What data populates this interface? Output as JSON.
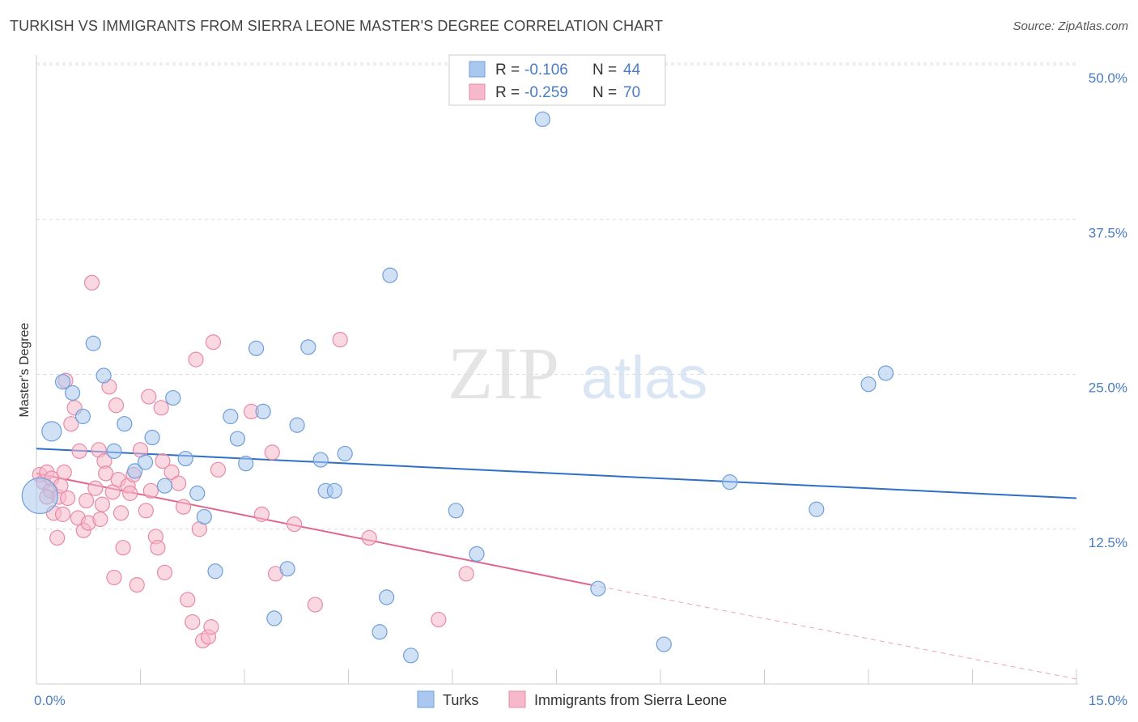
{
  "title": "TURKISH VS IMMIGRANTS FROM SIERRA LEONE MASTER'S DEGREE CORRELATION CHART",
  "source": "Source: ZipAtlas.com",
  "watermark": {
    "zip": "ZIP",
    "atlas": "atlas"
  },
  "colors": {
    "turks_fill": "#aac8ef",
    "turks_stroke": "#6f9fd8",
    "turks_line": "#2f6fc7",
    "sl_fill": "#f6b8cb",
    "sl_stroke": "#e78aa6",
    "sl_line": "#e06690",
    "tick_text": "#4a7cc4",
    "grid": "#dcdcdc"
  },
  "legend": {
    "turks": {
      "r_label": "R = ",
      "r_value": "-0.106",
      "n_label": "N = ",
      "n_value": "44"
    },
    "sl": {
      "r_label": "R = ",
      "r_value": "-0.259",
      "n_label": "N = ",
      "n_value": "70"
    }
  },
  "chart_data": {
    "type": "scatter",
    "title": "TURKISH VS IMMIGRANTS FROM SIERRA LEONE MASTER'S DEGREE CORRELATION CHART",
    "xlabel": "",
    "ylabel": "Master's Degree",
    "xlim": [
      0,
      15
    ],
    "ylim": [
      0,
      51.5
    ],
    "x_tick_labels": [
      {
        "value": 0,
        "label": "0.0%"
      },
      {
        "value": 15,
        "label": "15.0%"
      }
    ],
    "y_tick_labels": [
      {
        "value": 12.5,
        "label": "12.5%"
      },
      {
        "value": 25,
        "label": "25.0%"
      },
      {
        "value": 37.5,
        "label": "37.5%"
      },
      {
        "value": 50,
        "label": "50.0%"
      }
    ],
    "grid": true,
    "legend_position": "top-center",
    "series": [
      {
        "name": "Turks",
        "color": "#aac8ef",
        "points": [
          [
            0.05,
            15.2,
            22
          ],
          [
            0.22,
            20.4,
            12
          ],
          [
            0.38,
            24.4,
            9
          ],
          [
            0.52,
            23.5,
            9
          ],
          [
            0.67,
            21.6,
            9
          ],
          [
            0.82,
            27.5,
            9
          ],
          [
            0.97,
            24.9,
            9
          ],
          [
            1.12,
            18.8,
            9
          ],
          [
            1.27,
            21.0,
            9
          ],
          [
            1.42,
            17.2,
            9
          ],
          [
            1.57,
            17.9,
            9
          ],
          [
            1.67,
            19.9,
            9
          ],
          [
            1.85,
            16.0,
            9
          ],
          [
            1.97,
            23.1,
            9
          ],
          [
            2.15,
            18.2,
            9
          ],
          [
            2.32,
            15.4,
            9
          ],
          [
            2.42,
            13.5,
            9
          ],
          [
            2.58,
            9.1,
            9
          ],
          [
            2.8,
            21.6,
            9
          ],
          [
            2.9,
            19.8,
            9
          ],
          [
            3.02,
            17.8,
            9
          ],
          [
            3.17,
            27.1,
            9
          ],
          [
            3.27,
            22.0,
            9
          ],
          [
            3.43,
            5.3,
            9
          ],
          [
            3.62,
            9.3,
            9
          ],
          [
            3.76,
            20.9,
            9
          ],
          [
            3.92,
            27.2,
            9
          ],
          [
            4.1,
            18.1,
            9
          ],
          [
            4.17,
            15.6,
            9
          ],
          [
            4.3,
            15.6,
            9
          ],
          [
            4.45,
            18.6,
            9
          ],
          [
            5.1,
            33.0,
            9
          ],
          [
            5.05,
            7.0,
            9
          ],
          [
            4.95,
            4.2,
            9
          ],
          [
            5.4,
            2.3,
            9
          ],
          [
            6.05,
            14.0,
            9
          ],
          [
            6.35,
            10.5,
            9
          ],
          [
            7.3,
            45.6,
            9
          ],
          [
            8.1,
            7.7,
            9
          ],
          [
            9.05,
            3.2,
            9
          ],
          [
            10.0,
            16.3,
            9
          ],
          [
            11.25,
            14.1,
            9
          ],
          [
            12.0,
            24.2,
            9
          ],
          [
            12.25,
            25.1,
            9
          ]
        ],
        "trend": {
          "x": [
            0,
            15
          ],
          "y": [
            19.0,
            15.0
          ]
        }
      },
      {
        "name": "Immigrants from Sierra Leone",
        "color": "#f6b8cb",
        "points": [
          [
            0.05,
            16.9,
            9
          ],
          [
            0.1,
            16.3,
            9
          ],
          [
            0.15,
            17.1,
            9
          ],
          [
            0.2,
            15.6,
            9
          ],
          [
            0.22,
            16.6,
            9
          ],
          [
            0.25,
            13.8,
            9
          ],
          [
            0.3,
            11.8,
            9
          ],
          [
            0.32,
            15.1,
            9
          ],
          [
            0.38,
            13.7,
            9
          ],
          [
            0.4,
            17.1,
            9
          ],
          [
            0.45,
            15.0,
            9
          ],
          [
            0.42,
            24.5,
            9
          ],
          [
            0.5,
            21.0,
            9
          ],
          [
            0.55,
            22.3,
            9
          ],
          [
            0.6,
            13.4,
            9
          ],
          [
            0.62,
            18.8,
            9
          ],
          [
            0.68,
            12.4,
            9
          ],
          [
            0.72,
            14.8,
            9
          ],
          [
            0.75,
            13.0,
            9
          ],
          [
            0.8,
            32.4,
            9
          ],
          [
            0.85,
            15.8,
            9
          ],
          [
            0.9,
            18.9,
            9
          ],
          [
            0.92,
            13.3,
            9
          ],
          [
            0.95,
            14.5,
            9
          ],
          [
            0.98,
            18.0,
            9
          ],
          [
            1.0,
            17.0,
            9
          ],
          [
            1.05,
            24.0,
            9
          ],
          [
            1.1,
            15.5,
            9
          ],
          [
            1.12,
            8.6,
            9
          ],
          [
            1.15,
            22.5,
            9
          ],
          [
            1.18,
            16.5,
            9
          ],
          [
            1.22,
            13.8,
            9
          ],
          [
            1.25,
            11.0,
            9
          ],
          [
            1.32,
            16.0,
            9
          ],
          [
            1.35,
            15.4,
            9
          ],
          [
            1.4,
            16.9,
            9
          ],
          [
            1.45,
            8.0,
            9
          ],
          [
            1.5,
            18.9,
            9
          ],
          [
            1.58,
            14.0,
            9
          ],
          [
            1.62,
            23.2,
            9
          ],
          [
            1.65,
            15.6,
            9
          ],
          [
            1.72,
            11.9,
            9
          ],
          [
            1.75,
            11.0,
            9
          ],
          [
            1.8,
            22.3,
            9
          ],
          [
            1.82,
            18.0,
            9
          ],
          [
            1.85,
            9.0,
            9
          ],
          [
            1.95,
            17.1,
            9
          ],
          [
            2.05,
            16.2,
            9
          ],
          [
            2.12,
            14.3,
            9
          ],
          [
            2.18,
            6.8,
            9
          ],
          [
            2.25,
            5.0,
            9
          ],
          [
            2.3,
            26.2,
            9
          ],
          [
            2.35,
            12.5,
            9
          ],
          [
            2.4,
            3.5,
            9
          ],
          [
            2.48,
            3.8,
            9
          ],
          [
            2.52,
            4.6,
            9
          ],
          [
            2.55,
            27.6,
            9
          ],
          [
            2.62,
            17.3,
            9
          ],
          [
            3.1,
            22.0,
            9
          ],
          [
            3.25,
            13.7,
            9
          ],
          [
            3.4,
            18.7,
            9
          ],
          [
            3.45,
            8.9,
            9
          ],
          [
            3.72,
            12.9,
            9
          ],
          [
            4.02,
            6.4,
            9
          ],
          [
            4.38,
            27.8,
            9
          ],
          [
            4.8,
            11.8,
            9
          ],
          [
            5.8,
            5.2,
            9
          ],
          [
            6.2,
            8.9,
            9
          ],
          [
            0.15,
            15.1,
            9
          ],
          [
            0.35,
            16.0,
            9
          ]
        ],
        "trend": {
          "x": [
            0,
            8.0
          ],
          "y": [
            17.0,
            8.0
          ]
        },
        "trend_extension": {
          "x": [
            8.0,
            15.0
          ],
          "y": [
            8.0,
            0.4
          ]
        }
      }
    ]
  },
  "bottom_legend": [
    "Turks",
    "Immigrants from Sierra Leone"
  ]
}
